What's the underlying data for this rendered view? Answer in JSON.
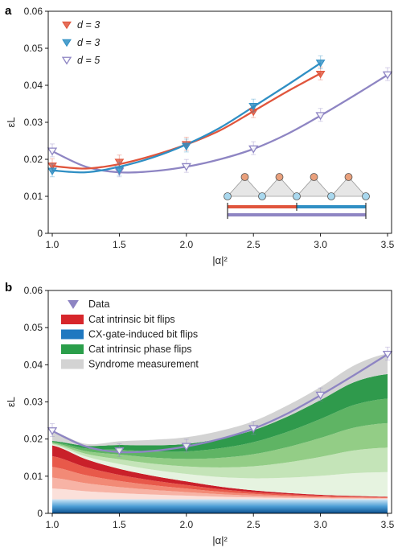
{
  "chart_data": [
    {
      "panel_label": "a",
      "type": "line",
      "xlabel": "|α|²",
      "ylabel": "εL",
      "xlim": [
        0.97,
        3.53
      ],
      "ylim": [
        0,
        0.06
      ],
      "xticks": [
        1.0,
        1.5,
        2.0,
        2.5,
        3.0,
        3.5
      ],
      "xtick_labels": [
        "1.0",
        "1.5",
        "2.0",
        "2.5",
        "3.0",
        "3.5"
      ],
      "yticks": [
        0,
        0.01,
        0.02,
        0.03,
        0.04,
        0.05,
        0.06
      ],
      "ytick_labels": [
        "0",
        "0.01",
        "0.02",
        "0.03",
        "0.04",
        "0.05",
        "0.06"
      ],
      "legend_position": "top-left",
      "series": [
        {
          "name": "d = 3",
          "color": "#e0553c",
          "marker": "triangle-down",
          "x": [
            1.0,
            1.5,
            2.0,
            2.5,
            3.0
          ],
          "y": [
            0.0182,
            0.0192,
            0.024,
            0.0328,
            0.043
          ],
          "fit_x": [
            1.0,
            1.25,
            1.5,
            1.75,
            2.0,
            2.25,
            2.5,
            2.75,
            3.0
          ],
          "fit_y": [
            0.0182,
            0.0175,
            0.0187,
            0.021,
            0.024,
            0.0278,
            0.033,
            0.0383,
            0.0432
          ]
        },
        {
          "name": "d = 3",
          "color": "#2f8fc4",
          "marker": "triangle-down",
          "x": [
            1.0,
            1.5,
            2.0,
            2.5,
            3.0
          ],
          "y": [
            0.0168,
            0.0172,
            0.0235,
            0.0343,
            0.046
          ],
          "fit_x": [
            1.0,
            1.25,
            1.5,
            1.75,
            2.0,
            2.25,
            2.5,
            2.75,
            3.0
          ],
          "fit_y": [
            0.017,
            0.0165,
            0.018,
            0.0205,
            0.024,
            0.0285,
            0.0342,
            0.04,
            0.046
          ]
        },
        {
          "name": "d = 5",
          "color": "#8e85c3",
          "marker": "triangle-down-open",
          "x": [
            1.0,
            1.5,
            2.0,
            2.5,
            3.0,
            3.5
          ],
          "y": [
            0.0222,
            0.0168,
            0.018,
            0.0228,
            0.0318,
            0.0428
          ],
          "fit_x": [
            1.0,
            1.25,
            1.5,
            1.75,
            2.0,
            2.25,
            2.5,
            2.75,
            3.0,
            3.25,
            3.5
          ],
          "fit_y": [
            0.0222,
            0.018,
            0.0165,
            0.0168,
            0.018,
            0.02,
            0.0228,
            0.0268,
            0.0318,
            0.0372,
            0.0428
          ]
        }
      ]
    },
    {
      "panel_label": "b",
      "type": "area",
      "xlabel": "|α|²",
      "ylabel": "εL",
      "xlim": [
        0.97,
        3.53
      ],
      "ylim": [
        0,
        0.06
      ],
      "xticks": [
        1.0,
        1.5,
        2.0,
        2.5,
        3.0,
        3.5
      ],
      "xtick_labels": [
        "1.0",
        "1.5",
        "2.0",
        "2.5",
        "3.0",
        "3.5"
      ],
      "yticks": [
        0,
        0.01,
        0.02,
        0.03,
        0.04,
        0.05,
        0.06
      ],
      "ytick_labels": [
        "0",
        "0.01",
        "0.02",
        "0.03",
        "0.04",
        "0.05",
        "0.06"
      ],
      "legend_position": "top-left",
      "x": [
        1.0,
        1.25,
        1.5,
        1.75,
        2.0,
        2.25,
        2.5,
        2.75,
        3.0,
        3.25,
        3.5
      ],
      "series": [
        {
          "name": "CX-gate-induced bit flips",
          "color": "#1f78c0",
          "y": [
            0.0038,
            0.0038,
            0.0038,
            0.0038,
            0.0038,
            0.0038,
            0.0038,
            0.0038,
            0.0038,
            0.0038,
            0.0038
          ]
        },
        {
          "name": "Cat intrinsic bit flips",
          "color": "#d7262b",
          "y": [
            0.0145,
            0.0108,
            0.0082,
            0.0063,
            0.0048,
            0.0034,
            0.0024,
            0.0017,
            0.0012,
            0.0009,
            0.0007
          ]
        },
        {
          "name": "Cat intrinsic phase flips",
          "color": "#2a9e4a",
          "y": [
            0.0012,
            0.0036,
            0.0064,
            0.0082,
            0.0101,
            0.0129,
            0.0162,
            0.0205,
            0.0255,
            0.0306,
            0.033
          ]
        },
        {
          "name": "Syndrome measurement",
          "color": "#d3d3d3",
          "y": [
            0.0025,
            0.0005,
            0.001,
            0.0015,
            0.0018,
            0.0021,
            0.0024,
            0.003,
            0.0035,
            0.0045,
            0.0055
          ]
        }
      ],
      "data_series": {
        "name": "Data",
        "color": "#8e85c3",
        "marker": "triangle-down-open",
        "x": [
          1.0,
          1.5,
          2.0,
          2.5,
          3.0,
          3.5
        ],
        "y": [
          0.0222,
          0.0168,
          0.018,
          0.0228,
          0.0318,
          0.0428
        ],
        "fit_x": [
          1.0,
          1.25,
          1.5,
          1.75,
          2.0,
          2.25,
          2.5,
          2.75,
          3.0,
          3.25,
          3.5
        ],
        "fit_y": [
          0.0222,
          0.018,
          0.0165,
          0.0168,
          0.018,
          0.02,
          0.0228,
          0.0268,
          0.0318,
          0.0372,
          0.0428
        ]
      }
    }
  ],
  "inset": {
    "colors": {
      "data_qubit": "#e9a07c",
      "ancilla_qubit": "#a9d8ee",
      "triangle": "#e6e6e6",
      "bar_red": "#e0553c",
      "bar_blue": "#2f8fc4",
      "bar_purple": "#8e85c3"
    }
  }
}
